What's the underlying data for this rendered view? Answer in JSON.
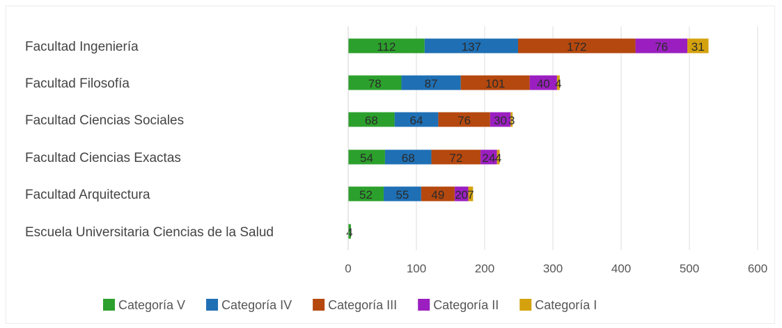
{
  "chart_data": {
    "type": "bar",
    "orientation": "horizontal",
    "stacked": true,
    "categories": [
      "Facultad Ingeniería",
      "Facultad Filosofía",
      "Facultad Ciencias Sociales",
      "Facultad Ciencias Exactas",
      "Facultad Arquitectura",
      "Escuela Universitaria Ciencias de la Salud"
    ],
    "series": [
      {
        "name": "Categoría V",
        "color": "#2ca02c",
        "values": [
          112,
          78,
          68,
          54,
          52,
          4
        ]
      },
      {
        "name": "Categoría IV",
        "color": "#1f6fb4",
        "values": [
          137,
          87,
          64,
          68,
          55,
          0
        ]
      },
      {
        "name": "Categoría III",
        "color": "#b5480e",
        "values": [
          172,
          101,
          76,
          72,
          49,
          0
        ]
      },
      {
        "name": "Categoría  II",
        "color": "#9b1fc0",
        "values": [
          76,
          40,
          30,
          24,
          20,
          0
        ]
      },
      {
        "name": "Categoría I",
        "color": "#d4a20e",
        "values": [
          31,
          4,
          3,
          4,
          7,
          0
        ]
      }
    ],
    "value_labels": [
      [
        "112",
        "137",
        "172",
        "76",
        "31"
      ],
      [
        "78",
        "87",
        "101",
        "40",
        "4"
      ],
      [
        "68",
        "64",
        "76",
        "30",
        "3"
      ],
      [
        "54",
        "68",
        "72",
        "24",
        "4"
      ],
      [
        "52",
        "55",
        "49",
        "20",
        "7"
      ],
      [
        "4",
        "",
        "",
        "",
        ""
      ]
    ],
    "xlim": [
      0,
      600
    ],
    "xticks": [
      "0",
      "100",
      "200",
      "300",
      "400",
      "500",
      "600"
    ],
    "grid": true,
    "legend_position": "bottom"
  }
}
